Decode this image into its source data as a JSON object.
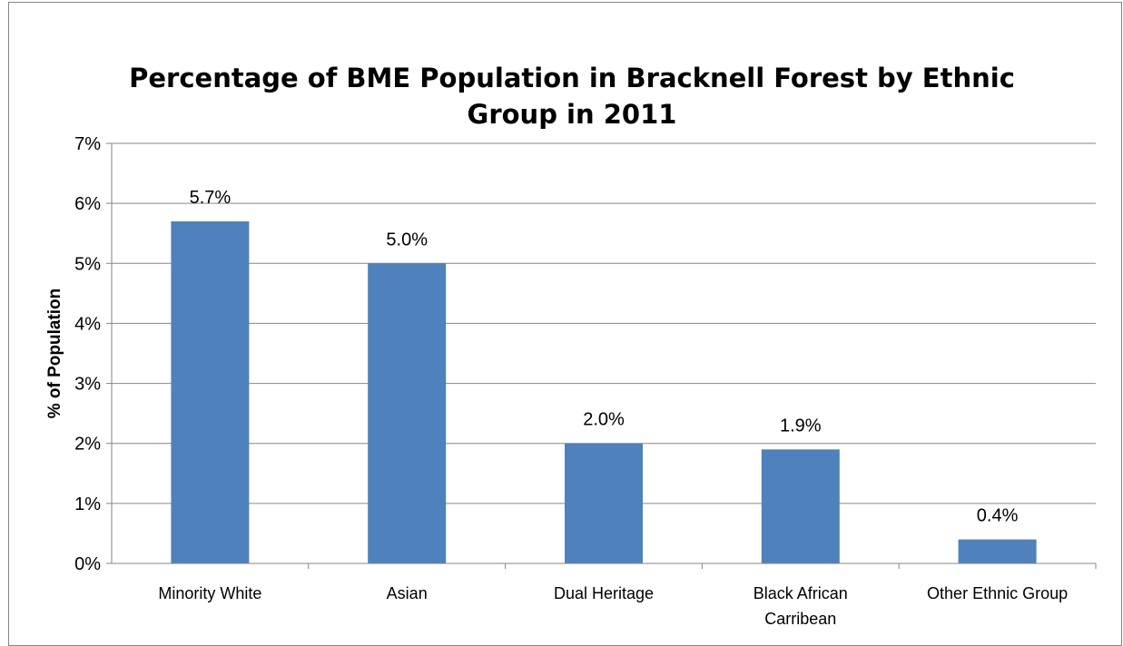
{
  "chart_data": {
    "type": "bar",
    "title_lines": [
      "Percentage of BME Population in Bracknell Forest by Ethnic",
      "Group in 2011"
    ],
    "xlabel": "",
    "ylabel": "% of Population",
    "categories": [
      [
        "Minority White"
      ],
      [
        "Asian"
      ],
      [
        "Dual Heritage"
      ],
      [
        "Black African",
        "Carribean"
      ],
      [
        "Other Ethnic Group"
      ]
    ],
    "values": [
      5.7,
      5.0,
      2.0,
      1.9,
      0.4
    ],
    "data_labels": [
      "5.7%",
      "5.0%",
      "2.0%",
      "1.9%",
      "0.4%"
    ],
    "ylim": [
      0,
      7
    ],
    "yticks": [
      0,
      1,
      2,
      3,
      4,
      5,
      6,
      7
    ],
    "ytick_labels": [
      "0%",
      "1%",
      "2%",
      "3%",
      "4%",
      "5%",
      "6%",
      "7%"
    ],
    "grid": true,
    "legend": "none",
    "bar_color": "#4F81BD",
    "grid_color": "#868686"
  }
}
